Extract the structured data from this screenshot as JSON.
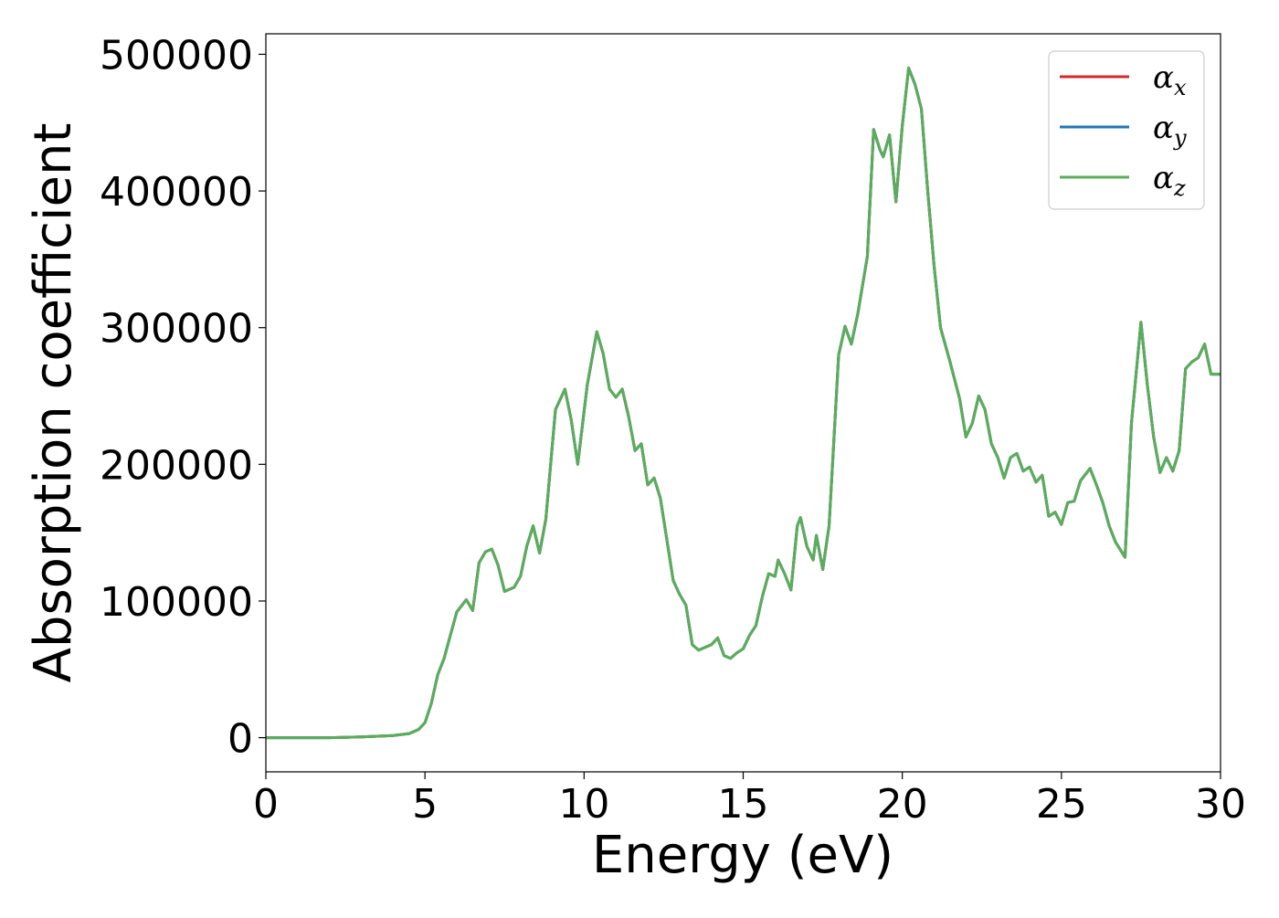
{
  "chart_data": {
    "type": "line",
    "xlabel": "Energy (eV)",
    "ylabel": "Absorption coefficient",
    "xlim": [
      0,
      30
    ],
    "ylim": [
      -25000,
      515000
    ],
    "xticks": [
      0,
      5,
      10,
      15,
      20,
      25,
      30
    ],
    "yticks": [
      0,
      100000,
      200000,
      300000,
      400000,
      500000
    ],
    "grid": false,
    "legend_position": "top-right",
    "series": [
      {
        "name": "αx",
        "symbol": "α",
        "subscript": "x",
        "color": "#d62728"
      },
      {
        "name": "αy",
        "symbol": "α",
        "subscript": "y",
        "color": "#1f77b4"
      },
      {
        "name": "αz",
        "symbol": "α",
        "subscript": "z",
        "color": "#5aad5a"
      }
    ],
    "x": [
      0,
      1,
      2,
      3,
      4,
      4.5,
      4.8,
      5.0,
      5.2,
      5.4,
      5.6,
      5.8,
      6.0,
      6.3,
      6.5,
      6.7,
      6.9,
      7.1,
      7.3,
      7.5,
      7.8,
      8.0,
      8.2,
      8.4,
      8.6,
      8.8,
      9.1,
      9.4,
      9.6,
      9.8,
      10.1,
      10.4,
      10.6,
      10.8,
      11.0,
      11.2,
      11.4,
      11.6,
      11.8,
      12.0,
      12.2,
      12.4,
      12.6,
      12.8,
      13.0,
      13.2,
      13.4,
      13.6,
      13.8,
      14.0,
      14.2,
      14.4,
      14.6,
      14.8,
      15.0,
      15.2,
      15.4,
      15.6,
      15.8,
      16.0,
      16.1,
      16.3,
      16.5,
      16.7,
      16.8,
      17.0,
      17.2,
      17.3,
      17.5,
      17.7,
      18.0,
      18.2,
      18.4,
      18.6,
      18.9,
      19.1,
      19.3,
      19.4,
      19.6,
      19.8,
      20.0,
      20.2,
      20.4,
      20.6,
      20.8,
      21.0,
      21.2,
      21.5,
      21.8,
      22.0,
      22.2,
      22.4,
      22.6,
      22.8,
      23.0,
      23.2,
      23.4,
      23.6,
      23.8,
      24.0,
      24.2,
      24.4,
      24.6,
      24.8,
      25.0,
      25.2,
      25.4,
      25.6,
      25.9,
      26.1,
      26.3,
      26.5,
      26.7,
      27.0,
      27.2,
      27.5,
      27.7,
      27.9,
      28.1,
      28.3,
      28.5,
      28.7,
      28.9,
      29.1,
      29.3,
      29.5,
      29.7,
      29.9,
      30.0
    ],
    "y": [
      0,
      0,
      0,
      500,
      1500,
      3000,
      6000,
      11000,
      25000,
      46000,
      58000,
      75000,
      92000,
      101000,
      93000,
      128000,
      136000,
      138000,
      126000,
      107000,
      110000,
      118000,
      140000,
      155000,
      135000,
      160000,
      240000,
      255000,
      232000,
      200000,
      258000,
      297000,
      281000,
      255000,
      249000,
      255000,
      235000,
      210000,
      215000,
      185000,
      190000,
      175000,
      145000,
      115000,
      105000,
      97000,
      68000,
      64000,
      66000,
      68000,
      73000,
      60000,
      58000,
      62000,
      65000,
      75000,
      82000,
      103000,
      120000,
      118000,
      130000,
      120000,
      108000,
      155000,
      161000,
      140000,
      130000,
      148000,
      123000,
      155000,
      280000,
      301000,
      288000,
      310000,
      352000,
      445000,
      430000,
      425000,
      441000,
      392000,
      448000,
      490000,
      478000,
      460000,
      400000,
      345000,
      300000,
      275000,
      248000,
      220000,
      230000,
      250000,
      240000,
      215000,
      205000,
      190000,
      205000,
      208000,
      195000,
      198000,
      187000,
      192000,
      162000,
      165000,
      156000,
      172000,
      173000,
      188000,
      197000,
      185000,
      172000,
      155000,
      143000,
      132000,
      230000,
      304000,
      258000,
      220000,
      194000,
      205000,
      195000,
      210000,
      270000,
      275000,
      278000,
      288000,
      266000,
      266000,
      266000
    ]
  }
}
